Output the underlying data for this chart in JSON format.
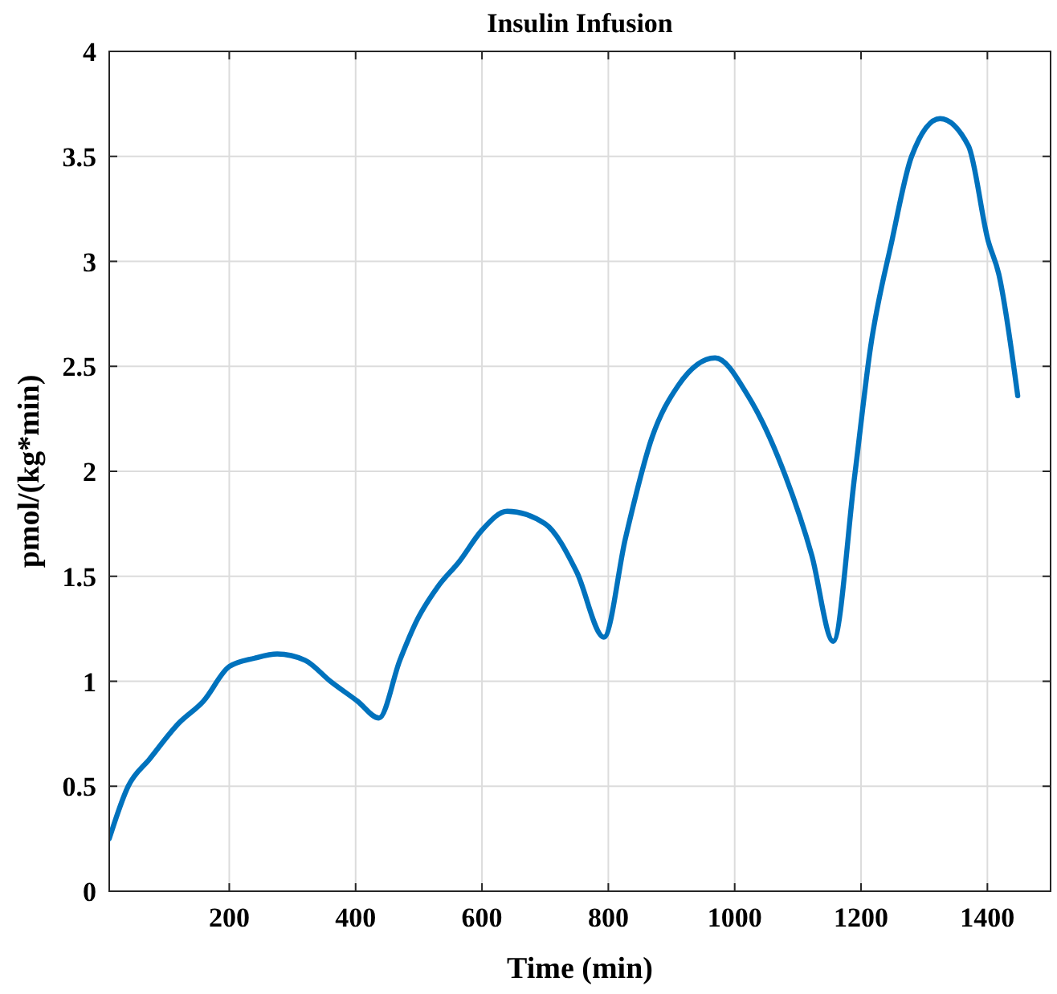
{
  "chart_data": {
    "type": "line",
    "title": "Insulin Infusion",
    "xlabel": "Time (min)",
    "ylabel": "pmol/(kg*min)",
    "xlim": [
      10,
      1500
    ],
    "xticks": [
      200,
      400,
      600,
      800,
      1000,
      1200,
      1400
    ],
    "ylim": [
      0,
      4
    ],
    "yticks": [
      0,
      0.5,
      1,
      1.5,
      2,
      2.5,
      3,
      3.5,
      4
    ],
    "grid": true,
    "marker": "none",
    "line_style": "solid",
    "series": [
      {
        "color": "#0072bd",
        "x": [
          10,
          40,
          74,
          120,
          159,
          200,
          240,
          276,
          320,
          360,
          403,
          437,
          470,
          497,
          530,
          564,
          600,
          640,
          700,
          750,
          793,
          827,
          869,
          911,
          969,
          1021,
          1080,
          1122,
          1156,
          1190,
          1215,
          1249,
          1280,
          1325,
          1370,
          1401,
          1418,
          1448
        ],
        "values": [
          0.25,
          0.5,
          0.63,
          0.8,
          0.905,
          1.07,
          1.11,
          1.13,
          1.1,
          1.0,
          0.905,
          0.825,
          1.1,
          1.29,
          1.45,
          1.57,
          1.72,
          1.81,
          1.75,
          1.52,
          1.21,
          1.68,
          2.16,
          2.41,
          2.54,
          2.36,
          1.98,
          1.6,
          1.19,
          1.98,
          2.59,
          3.1,
          3.5,
          3.68,
          3.55,
          3.1,
          2.94,
          2.36
        ]
      }
    ]
  }
}
